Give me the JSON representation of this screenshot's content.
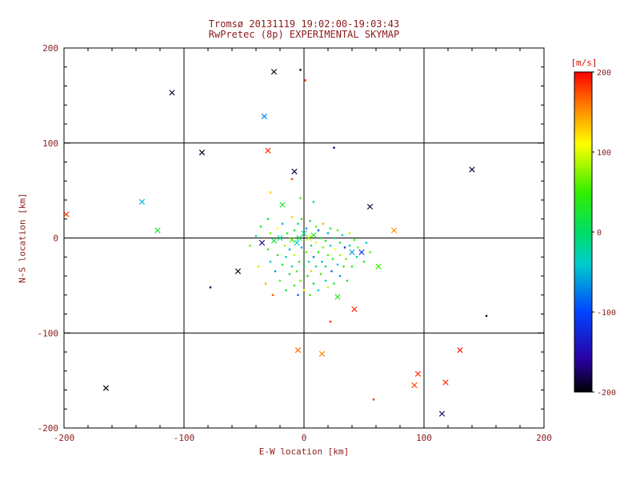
{
  "header": {
    "title_line1": "Tromsø 20131119 19:02:00-19:03:43",
    "title_line2": "RwPretec (8p) EXPERIMENTAL SKYMAP"
  },
  "colors": {
    "text": "#8b1a1a",
    "units_label": "#cc1100",
    "axis": "#000000",
    "background": "#ffffff"
  },
  "chart_data": {
    "type": "scatter",
    "title": "Tromsø 20131119 19:02:00-19:03:43 / RwPretec (8p) EXPERIMENTAL SKYMAP",
    "xlabel": "E-W location [km]",
    "ylabel": "N-S location [km]",
    "xlim": [
      -200,
      200
    ],
    "ylim": [
      -200,
      200
    ],
    "xticks": [
      -200,
      -100,
      0,
      100,
      200
    ],
    "yticks": [
      -200,
      -100,
      0,
      100,
      200
    ],
    "grid": true,
    "legend_position": "none",
    "colorbar": {
      "label": "[m/s]",
      "min": -200,
      "max": 200,
      "ticks": [
        200,
        100,
        0,
        -100,
        -200
      ],
      "stops": [
        {
          "v": 200,
          "c": "#ff0000"
        },
        {
          "v": 160,
          "c": "#ff7700"
        },
        {
          "v": 110,
          "c": "#ffff00"
        },
        {
          "v": 50,
          "c": "#33ee00"
        },
        {
          "v": 0,
          "c": "#00dd66"
        },
        {
          "v": -40,
          "c": "#00cccc"
        },
        {
          "v": -100,
          "c": "#0044ff"
        },
        {
          "v": -160,
          "c": "#2a00a0"
        },
        {
          "v": -200,
          "c": "#000000"
        }
      ]
    },
    "points_format": [
      "x_km",
      "y_km",
      "velocity_mps",
      "marker(x=cross,d=dot)"
    ],
    "points": [
      [
        -110,
        153,
        -190,
        "x"
      ],
      [
        -25,
        175,
        -195,
        "x"
      ],
      [
        -3,
        177,
        -185,
        "d"
      ],
      [
        1,
        166,
        190,
        "d"
      ],
      [
        -33,
        128,
        -70,
        "x"
      ],
      [
        -85,
        90,
        -190,
        "x"
      ],
      [
        -30,
        92,
        185,
        "x"
      ],
      [
        25,
        95,
        -175,
        "d"
      ],
      [
        -8,
        70,
        -180,
        "x"
      ],
      [
        -10,
        62,
        175,
        "d"
      ],
      [
        140,
        72,
        -185,
        "x"
      ],
      [
        -135,
        38,
        -50,
        "x"
      ],
      [
        -198,
        25,
        185,
        "x"
      ],
      [
        -122,
        8,
        30,
        "x"
      ],
      [
        55,
        33,
        -190,
        "x"
      ],
      [
        75,
        8,
        150,
        "x"
      ],
      [
        -55,
        -35,
        -195,
        "x"
      ],
      [
        -78,
        -52,
        -180,
        "d"
      ],
      [
        28,
        -62,
        40,
        "x"
      ],
      [
        42,
        -75,
        190,
        "x"
      ],
      [
        22,
        -88,
        185,
        "d"
      ],
      [
        -5,
        -118,
        165,
        "x"
      ],
      [
        15,
        -122,
        155,
        "x"
      ],
      [
        130,
        -118,
        190,
        "x"
      ],
      [
        152,
        -82,
        -185,
        "d"
      ],
      [
        95,
        -143,
        190,
        "x"
      ],
      [
        118,
        -152,
        185,
        "x"
      ],
      [
        -165,
        -158,
        -195,
        "x"
      ],
      [
        115,
        -185,
        -180,
        "x"
      ],
      [
        92,
        -155,
        180,
        "x"
      ],
      [
        58,
        -170,
        185,
        "d"
      ],
      [
        -18,
        35,
        30,
        "x"
      ],
      [
        -3,
        42,
        60,
        "d"
      ],
      [
        8,
        38,
        -30,
        "d"
      ],
      [
        -28,
        48,
        130,
        "d"
      ],
      [
        62,
        -30,
        50,
        "x"
      ],
      [
        48,
        -15,
        -120,
        "x"
      ],
      [
        40,
        -15,
        -60,
        "x"
      ],
      [
        -45,
        -8,
        60,
        "d"
      ],
      [
        -40,
        2,
        -20,
        "d"
      ],
      [
        -38,
        -30,
        90,
        "d"
      ],
      [
        -36,
        12,
        30,
        "d"
      ],
      [
        -35,
        -5,
        -170,
        "x"
      ],
      [
        -32,
        -48,
        140,
        "d"
      ],
      [
        -30,
        -12,
        50,
        "d"
      ],
      [
        -30,
        20,
        10,
        "d"
      ],
      [
        -28,
        -25,
        -40,
        "d"
      ],
      [
        -28,
        5,
        70,
        "d"
      ],
      [
        -26,
        -60,
        170,
        "d"
      ],
      [
        -25,
        -3,
        20,
        "x"
      ],
      [
        -24,
        -35,
        -60,
        "d"
      ],
      [
        -22,
        10,
        110,
        "d"
      ],
      [
        -22,
        -18,
        40,
        "d"
      ],
      [
        -20,
        -45,
        60,
        "d"
      ],
      [
        -20,
        0,
        -10,
        "x"
      ],
      [
        -18,
        -28,
        30,
        "d"
      ],
      [
        -18,
        15,
        -50,
        "d"
      ],
      [
        -16,
        -8,
        80,
        "d"
      ],
      [
        -15,
        -55,
        20,
        "d"
      ],
      [
        -15,
        -20,
        -30,
        "d"
      ],
      [
        -14,
        5,
        50,
        "d"
      ],
      [
        -12,
        -38,
        10,
        "d"
      ],
      [
        -12,
        -12,
        -60,
        "d"
      ],
      [
        -10,
        22,
        130,
        "d"
      ],
      [
        -10,
        -2,
        60,
        "x"
      ],
      [
        -10,
        -30,
        -20,
        "d"
      ],
      [
        -8,
        -50,
        40,
        "d"
      ],
      [
        -8,
        8,
        20,
        "d"
      ],
      [
        -8,
        -18,
        90,
        "d"
      ],
      [
        -6,
        -5,
        -40,
        "x"
      ],
      [
        -6,
        -35,
        60,
        "d"
      ],
      [
        -5,
        15,
        -10,
        "d"
      ],
      [
        -5,
        -60,
        -80,
        "d"
      ],
      [
        -4,
        -25,
        30,
        "d"
      ],
      [
        -4,
        0,
        10,
        "x"
      ],
      [
        -3,
        -45,
        70,
        "d"
      ],
      [
        -2,
        -10,
        -50,
        "d"
      ],
      [
        -2,
        20,
        40,
        "d"
      ],
      [
        0,
        -30,
        20,
        "d"
      ],
      [
        0,
        5,
        -20,
        "x"
      ],
      [
        0,
        -55,
        110,
        "d"
      ],
      [
        2,
        -15,
        60,
        "d"
      ],
      [
        2,
        10,
        -60,
        "d"
      ],
      [
        3,
        -40,
        30,
        "d"
      ],
      [
        4,
        0,
        80,
        "x"
      ],
      [
        4,
        -25,
        -30,
        "d"
      ],
      [
        5,
        18,
        10,
        "d"
      ],
      [
        5,
        -60,
        50,
        "d"
      ],
      [
        6,
        -8,
        -10,
        "d"
      ],
      [
        6,
        -35,
        130,
        "d"
      ],
      [
        8,
        3,
        40,
        "x"
      ],
      [
        8,
        -20,
        -70,
        "d"
      ],
      [
        8,
        -48,
        20,
        "d"
      ],
      [
        10,
        12,
        60,
        "d"
      ],
      [
        10,
        -30,
        -20,
        "d"
      ],
      [
        10,
        -5,
        100,
        "d"
      ],
      [
        12,
        -55,
        -40,
        "d"
      ],
      [
        12,
        -15,
        30,
        "d"
      ],
      [
        12,
        8,
        -90,
        "d"
      ],
      [
        14,
        -38,
        50,
        "d"
      ],
      [
        14,
        0,
        20,
        "d"
      ],
      [
        15,
        -25,
        -50,
        "d"
      ],
      [
        16,
        -10,
        70,
        "d"
      ],
      [
        16,
        15,
        140,
        "d"
      ],
      [
        18,
        -45,
        -20,
        "d"
      ],
      [
        18,
        -3,
        40,
        "d"
      ],
      [
        18,
        -30,
        10,
        "d"
      ],
      [
        20,
        5,
        -60,
        "d"
      ],
      [
        20,
        -18,
        60,
        "d"
      ],
      [
        20,
        -52,
        90,
        "d"
      ],
      [
        22,
        -8,
        -30,
        "d"
      ],
      [
        22,
        10,
        30,
        "d"
      ],
      [
        23,
        -35,
        -80,
        "d"
      ],
      [
        24,
        -22,
        50,
        "d"
      ],
      [
        25,
        0,
        -10,
        "d"
      ],
      [
        25,
        -48,
        20,
        "d"
      ],
      [
        26,
        -12,
        110,
        "d"
      ],
      [
        28,
        -28,
        -40,
        "d"
      ],
      [
        28,
        8,
        60,
        "d"
      ],
      [
        30,
        -5,
        30,
        "d"
      ],
      [
        30,
        -40,
        -60,
        "d"
      ],
      [
        30,
        -18,
        80,
        "d"
      ],
      [
        32,
        3,
        -20,
        "d"
      ],
      [
        33,
        -30,
        40,
        "d"
      ],
      [
        34,
        -10,
        -100,
        "d"
      ],
      [
        35,
        -22,
        60,
        "d"
      ],
      [
        36,
        -45,
        20,
        "d"
      ],
      [
        38,
        -8,
        -30,
        "d"
      ],
      [
        38,
        5,
        90,
        "d"
      ],
      [
        40,
        -30,
        30,
        "d"
      ],
      [
        42,
        -2,
        50,
        "d"
      ],
      [
        44,
        -20,
        -20,
        "d"
      ],
      [
        45,
        -10,
        70,
        "d"
      ],
      [
        50,
        -25,
        40,
        "d"
      ],
      [
        52,
        -5,
        -40,
        "d"
      ],
      [
        55,
        -15,
        60,
        "d"
      ]
    ]
  }
}
